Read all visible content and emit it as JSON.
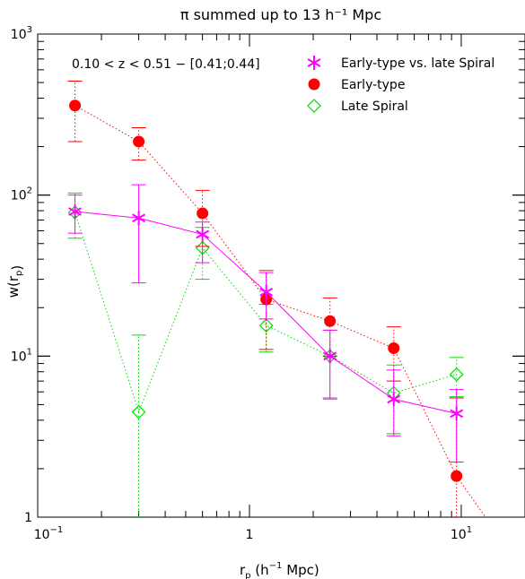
{
  "chart_data": {
    "type": "scatter",
    "title": "π summed up to 13 h⁻¹ Mpc",
    "annotation": "0.10 < z < 0.51 − [0.41;0.44]",
    "xlabel": {
      "main": "r",
      "sub": "p",
      "rest": " (h",
      "sup": "−1",
      "tail": " Mpc)"
    },
    "ylabel": {
      "main": "w(r",
      "sub": "p",
      "tail": ")"
    },
    "x_scale": "log",
    "y_scale": "log",
    "xlim": [
      0.1,
      20
    ],
    "ylim": [
      1,
      1000
    ],
    "x_ticks": [
      {
        "value": 0.1,
        "base": "10",
        "exp": "−1"
      },
      {
        "value": 1,
        "base": "1",
        "exp": ""
      },
      {
        "value": 10,
        "base": "10",
        "exp": "1"
      }
    ],
    "y_ticks": [
      {
        "value": 1,
        "base": "1",
        "exp": ""
      },
      {
        "value": 10,
        "base": "10",
        "exp": "1"
      },
      {
        "value": 100,
        "base": "10",
        "exp": "2"
      },
      {
        "value": 1000,
        "base": "10",
        "exp": "3"
      }
    ],
    "grid": false,
    "legend_position": "top-right",
    "series": [
      {
        "name": "Early-type vs. late Spiral",
        "color": "#ff00ff",
        "marker": "star",
        "line": "solid",
        "points": [
          {
            "x": 0.15,
            "y": 79,
            "lo": 58,
            "hi": 100
          },
          {
            "x": 0.3,
            "y": 72,
            "lo": 28.5,
            "hi": 116
          },
          {
            "x": 0.6,
            "y": 57,
            "lo": 38,
            "hi": 68
          },
          {
            "x": 1.2,
            "y": 25,
            "lo": 17,
            "hi": 33
          },
          {
            "x": 2.4,
            "y": 10,
            "lo": 5.5,
            "hi": 14.5
          },
          {
            "x": 4.8,
            "y": 5.4,
            "lo": 3.2,
            "hi": 8.2
          },
          {
            "x": 9.5,
            "y": 4.4,
            "lo": 2.2,
            "hi": 6.2
          }
        ]
      },
      {
        "name": "Early-type",
        "color": "#ff0000",
        "marker": "filled-circle",
        "line": "dotted",
        "points": [
          {
            "x": 0.15,
            "y": 360,
            "lo": 215,
            "hi": 510
          },
          {
            "x": 0.3,
            "y": 215,
            "lo": 165,
            "hi": 262
          },
          {
            "x": 0.6,
            "y": 77,
            "lo": 48,
            "hi": 107
          },
          {
            "x": 1.2,
            "y": 22.5,
            "lo": 11,
            "hi": 34
          },
          {
            "x": 2.4,
            "y": 16.5,
            "lo": 10,
            "hi": 23
          },
          {
            "x": 4.8,
            "y": 11.2,
            "lo": 7,
            "hi": 15.2
          },
          {
            "x": 9.5,
            "y": 1.8,
            "lo": 1,
            "hi": 5.5
          }
        ],
        "tail_to": {
          "x": 13,
          "y": 1
        }
      },
      {
        "name": "Late Spiral",
        "color": "#00dd00",
        "marker": "open-diamond",
        "line": "dotted",
        "points": [
          {
            "x": 0.15,
            "y": 78,
            "lo": 54,
            "hi": 103
          },
          {
            "x": 0.3,
            "y": 4.5,
            "lo": 1,
            "hi": 13.5
          },
          {
            "x": 0.6,
            "y": 47,
            "lo": 30,
            "hi": 63
          },
          {
            "x": 1.2,
            "y": 15.5,
            "lo": 10.6,
            "hi": 21
          },
          {
            "x": 2.4,
            "y": 10,
            "lo": 5.4,
            "hi": 14.5
          },
          {
            "x": 4.8,
            "y": 5.9,
            "lo": 3.3,
            "hi": 8.8
          },
          {
            "x": 9.5,
            "y": 7.7,
            "lo": 5.6,
            "hi": 9.8
          }
        ]
      }
    ]
  }
}
